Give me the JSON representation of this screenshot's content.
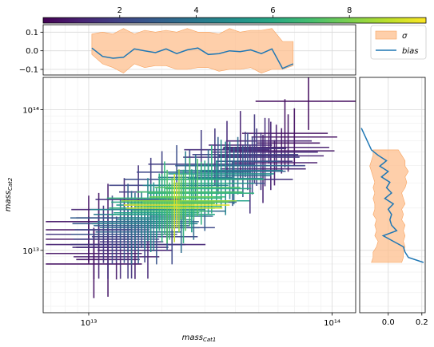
{
  "chart_data": [
    {
      "type": "colorbar",
      "colormap": "viridis",
      "range": [
        0,
        10
      ],
      "tick_labels": [
        "2",
        "4",
        "6",
        "8"
      ],
      "tick_values": [
        2,
        4,
        6,
        8
      ],
      "orientation": "horizontal",
      "location": "top"
    },
    {
      "type": "line",
      "title": "",
      "xlabel": "",
      "ylabel": "",
      "xscale": "log",
      "xlim": [
        6500000000000.0,
        125000000000000.0
      ],
      "ylim": [
        -0.13,
        0.14
      ],
      "ytick_labels": [
        "0.1",
        "0.0",
        "−0.1"
      ],
      "ytick_values": [
        0.1,
        0.0,
        -0.1
      ],
      "grid": true,
      "legend_position": "outside-right",
      "x": [
        10300000000000.0,
        11400000000000.0,
        12600000000000.0,
        13900000000000.0,
        15400000000000.0,
        17000000000000.0,
        18800000000000.0,
        20800000000000.0,
        23000000000000.0,
        25400000000000.0,
        28100000000000.0,
        31000000000000.0,
        34300000000000.0,
        37900000000000.0,
        41900000000000.0,
        46300000000000.0,
        51200000000000.0,
        56600000000000.0,
        62600000000000.0,
        69200000000000.0
      ],
      "series": [
        {
          "name": "σ",
          "kind": "band",
          "lower": [
            -0.02,
            -0.07,
            -0.09,
            -0.12,
            -0.07,
            -0.09,
            -0.08,
            -0.08,
            -0.1,
            -0.1,
            -0.09,
            -0.09,
            -0.11,
            -0.1,
            -0.1,
            -0.09,
            -0.12,
            -0.1,
            -0.1,
            -0.08
          ],
          "upper": [
            0.09,
            0.1,
            0.09,
            0.12,
            0.09,
            0.11,
            0.1,
            0.11,
            0.1,
            0.12,
            0.1,
            0.1,
            0.09,
            0.12,
            0.1,
            0.11,
            0.11,
            0.12,
            0.05,
            0.05
          ]
        },
        {
          "name": "bias",
          "kind": "line",
          "values": [
            0.015,
            -0.03,
            -0.04,
            -0.035,
            0.01,
            0.0,
            -0.01,
            0.01,
            -0.015,
            0.005,
            0.015,
            -0.02,
            -0.015,
            0.0,
            -0.005,
            0.005,
            -0.015,
            0.01,
            -0.095,
            -0.07
          ]
        }
      ]
    },
    {
      "type": "scatter",
      "title": "",
      "xlabel": "mass_Cat1",
      "ylabel": "mass_Cat2",
      "xscale": "log",
      "yscale": "log",
      "xlim": [
        6500000000000.0,
        125000000000000.0
      ],
      "ylim": [
        3600000000000.0,
        170000000000000.0
      ],
      "xtick_labels": [
        "10¹³",
        "10¹⁴"
      ],
      "xtick_values": [
        10000000000000.0,
        100000000000000.0
      ],
      "ytick_labels": [
        "10¹³",
        "10¹⁴"
      ],
      "ytick_values": [
        10000000000000.0,
        100000000000000.0
      ],
      "grid": true,
      "error_bars": true,
      "color_by": "point density (viridis, 0-10)",
      "points": [
        [
          10000000000000.0,
          12000000000000.0,
          0.4
        ],
        [
          10500000000000.0,
          9500000000000.0,
          0.5
        ],
        [
          11000000000000.0,
          11000000000000.0,
          1.0
        ],
        [
          11500000000000.0,
          13000000000000.0,
          1.6
        ],
        [
          12000000000000.0,
          10500000000000.0,
          1.3
        ],
        [
          12500000000000.0,
          14000000000000.0,
          2.2
        ],
        [
          13000000000000.0,
          12000000000000.0,
          2.0
        ],
        [
          13500000000000.0,
          15500000000000.0,
          2.8
        ],
        [
          14000000000000.0,
          13000000000000.0,
          2.6
        ],
        [
          14500000000000.0,
          17000000000000.0,
          3.0
        ],
        [
          15000000000000.0,
          14500000000000.0,
          3.4
        ],
        [
          15500000000000.0,
          16000000000000.0,
          3.8
        ],
        [
          16000000000000.0,
          13500000000000.0,
          3.1
        ],
        [
          16500000000000.0,
          18000000000000.0,
          4.0
        ],
        [
          17000000000000.0,
          15500000000000.0,
          4.3
        ],
        [
          17500000000000.0,
          19500000000000.0,
          4.6
        ],
        [
          18000000000000.0,
          17000000000000.0,
          4.9
        ],
        [
          18500000000000.0,
          21000000000000.0,
          5.2
        ],
        [
          19000000000000.0,
          18500000000000.0,
          5.6
        ],
        [
          19500000000000.0,
          22000000000000.0,
          6.0
        ],
        [
          20000000000000.0,
          20000000000000.0,
          6.4
        ],
        [
          20500000000000.0,
          23500000000000.0,
          6.6
        ],
        [
          21000000000000.0,
          20500000000000.0,
          7.2
        ],
        [
          21500000000000.0,
          19000000000000.0,
          6.8
        ],
        [
          22000000000000.0,
          21500000000000.0,
          7.6
        ],
        [
          22500000000000.0,
          20000000000000.0,
          9.2
        ],
        [
          23000000000000.0,
          21000000000000.0,
          9.6
        ],
        [
          23500000000000.0,
          22500000000000.0,
          8.4
        ],
        [
          24000000000000.0,
          24000000000000.0,
          7.8
        ],
        [
          25000000000000.0,
          22000000000000.0,
          7.4
        ],
        [
          26000000000000.0,
          26000000000000.0,
          7.0
        ],
        [
          27000000000000.0,
          24000000000000.0,
          6.8
        ],
        [
          28000000000000.0,
          28000000000000.0,
          7.2
        ],
        [
          29000000000000.0,
          25500000000000.0,
          6.4
        ],
        [
          30000000000000.0,
          30000000000000.0,
          6.0
        ],
        [
          31000000000000.0,
          27500000000000.0,
          5.8
        ],
        [
          32000000000000.0,
          32000000000000.0,
          6.2
        ],
        [
          33500000000000.0,
          30000000000000.0,
          5.4
        ],
        [
          35000000000000.0,
          35000000000000.0,
          5.0
        ],
        [
          36500000000000.0,
          32500000000000.0,
          4.6
        ],
        [
          38000000000000.0,
          37000000000000.0,
          4.2
        ],
        [
          39500000000000.0,
          34000000000000.0,
          3.8
        ],
        [
          41000000000000.0,
          40000000000000.0,
          3.4
        ],
        [
          43000000000000.0,
          36500000000000.0,
          3.0
        ],
        [
          45000000000000.0,
          43000000000000.0,
          2.6
        ],
        [
          47000000000000.0,
          40000000000000.0,
          2.2
        ],
        [
          49000000000000.0,
          46000000000000.0,
          1.8
        ],
        [
          51000000000000.0,
          43000000000000.0,
          1.5
        ],
        [
          53000000000000.0,
          50000000000000.0,
          1.2
        ],
        [
          56000000000000.0,
          47000000000000.0,
          1.0
        ],
        [
          59000000000000.0,
          54000000000000.0,
          0.8
        ],
        [
          62000000000000.0,
          51000000000000.0,
          0.6
        ],
        [
          66000000000000.0,
          58000000000000.0,
          0.5
        ],
        [
          70000000000000.0,
          64000000000000.0,
          0.4
        ],
        [
          80000000000000.0,
          115000000000000.0,
          0.3
        ],
        [
          10500000000000.0,
          8000000000000.0,
          0.4
        ],
        [
          12000000000000.0,
          8600000000000.0,
          0.6
        ],
        [
          13500000000000.0,
          10500000000000.0,
          1.2
        ],
        [
          15000000000000.0,
          11500000000000.0,
          1.5
        ],
        [
          17000000000000.0,
          12500000000000.0,
          2.0
        ],
        [
          19000000000000.0,
          14500000000000.0,
          2.6
        ],
        [
          21000000000000.0,
          16000000000000.0,
          3.2
        ],
        [
          24000000000000.0,
          17500000000000.0,
          3.6
        ],
        [
          27000000000000.0,
          19000000000000.0,
          3.4
        ],
        [
          30000000000000.0,
          22000000000000.0,
          3.0
        ],
        [
          12000000000000.0,
          17000000000000.0,
          0.7
        ],
        [
          14000000000000.0,
          19500000000000.0,
          1.0
        ],
        [
          16000000000000.0,
          23000000000000.0,
          1.4
        ],
        [
          18000000000000.0,
          26000000000000.0,
          1.8
        ],
        [
          20000000000000.0,
          29000000000000.0,
          2.0
        ],
        [
          23000000000000.0,
          32000000000000.0,
          2.4
        ],
        [
          26000000000000.0,
          36000000000000.0,
          2.2
        ],
        [
          29000000000000.0,
          41000000000000.0,
          1.8
        ],
        [
          33000000000000.0,
          46000000000000.0,
          1.6
        ],
        [
          37000000000000.0,
          52000000000000.0,
          1.2
        ],
        [
          42000000000000.0,
          56000000000000.0,
          1.0
        ],
        [
          46000000000000.0,
          32000000000000.0,
          1.4
        ],
        [
          52000000000000.0,
          38000000000000.0,
          1.0
        ],
        [
          58000000000000.0,
          42000000000000.0,
          0.7
        ],
        [
          64000000000000.0,
          68000000000000.0,
          0.4
        ],
        [
          10000000000000.0,
          14000000000000.0,
          0.5
        ],
        [
          11000000000000.0,
          16000000000000.0,
          0.6
        ],
        [
          13000000000000.0,
          9000000000000.0,
          0.7
        ],
        [
          15500000000000.0,
          10000000000000.0,
          0.9
        ],
        [
          17500000000000.0,
          11000000000000.0,
          1.1
        ],
        [
          22000000000000.0,
          14500000000000.0,
          2.2
        ],
        [
          25000000000000.0,
          29000000000000.0,
          4.2
        ],
        [
          27500000000000.0,
          33000000000000.0,
          3.8
        ],
        [
          31000000000000.0,
          36000000000000.0,
          3.6
        ],
        [
          34000000000000.0,
          40000000000000.0,
          3.0
        ],
        [
          39000000000000.0,
          30000000000000.0,
          2.8
        ],
        [
          44000000000000.0,
          48000000000000.0,
          2.0
        ],
        [
          48000000000000.0,
          53000000000000.0,
          1.6
        ],
        [
          55000000000000.0,
          60000000000000.0,
          0.9
        ],
        [
          14500000000000.0,
          11000000000000.0,
          1.6
        ],
        [
          16500000000000.0,
          15000000000000.0,
          3.0
        ],
        [
          18500000000000.0,
          16500000000000.0,
          4.4
        ],
        [
          20000000000000.0,
          18000000000000.0,
          5.8
        ],
        [
          24500000000000.0,
          20500000000000.0,
          6.2
        ],
        [
          26500000000000.0,
          22500000000000.0,
          5.6
        ]
      ]
    },
    {
      "type": "line",
      "title": "",
      "xlabel": "",
      "ylabel": "",
      "orientation": "vertical",
      "yscale": "log",
      "ylim": [
        3600000000000.0,
        170000000000000.0
      ],
      "xlim": [
        -0.17,
        0.22
      ],
      "xtick_labels": [
        "0.0",
        "0.2"
      ],
      "xtick_values": [
        0.0,
        0.2
      ],
      "grid": true,
      "y": [
        8200000000000.0,
        8900000000000.0,
        9700000000000.0,
        10600000000000.0,
        11600000000000.0,
        12700000000000.0,
        13800000000000.0,
        15100000000000.0,
        16500000000000.0,
        18000000000000.0,
        19600000000000.0,
        21400000000000.0,
        23400000000000.0,
        25600000000000.0,
        27900000000000.0,
        30500000000000.0,
        33300000000000.0,
        36400000000000.0,
        39700000000000.0,
        43400000000000.0,
        47400000000000.0,
        51800000000000.0
      ],
      "series": [
        {
          "name": "σ",
          "kind": "band",
          "lower": [
            -0.1,
            -0.09,
            -0.09,
            -0.07,
            -0.06,
            -0.08,
            -0.07,
            -0.08,
            -0.07,
            -0.09,
            -0.08,
            -0.08,
            -0.09,
            -0.08,
            -0.09,
            -0.08,
            -0.09,
            -0.1,
            -0.11,
            -0.1,
            -0.09,
            -0.09
          ],
          "upper": [
            0.08,
            0.09,
            0.09,
            0.1,
            0.09,
            0.1,
            0.09,
            0.1,
            0.08,
            0.09,
            0.08,
            0.1,
            0.09,
            0.08,
            0.1,
            0.11,
            0.1,
            0.12,
            0.1,
            0.1,
            0.08,
            0.06
          ]
        },
        {
          "name": "bias",
          "kind": "line",
          "values": [
            0.21,
            0.12,
            0.1,
            0.09,
            0.03,
            -0.03,
            0.05,
            0.02,
            0.01,
            0.02,
            0.0,
            0.03,
            -0.02,
            0.02,
            -0.01,
            0.01,
            -0.04,
            0.0,
            -0.05,
            -0.01,
            -0.06,
            -0.1
          ]
        },
        {
          "name": "bias-extension",
          "kind": "line",
          "values_x": [
            -0.1,
            -0.16
          ],
          "values_y": [
            51800000000000.0,
            74000000000000.0
          ]
        }
      ]
    }
  ],
  "legend": {
    "entries": [
      {
        "label": "σ",
        "kind": "band"
      },
      {
        "label": "bias",
        "kind": "line"
      }
    ]
  },
  "colors": {
    "band_fill": "#fdbf8e",
    "band_edge": "#f7a25e",
    "line": "#1f77b4",
    "grid": "#d9d9d9",
    "grid_minor": "#eeeeee",
    "axis": "#000000"
  }
}
